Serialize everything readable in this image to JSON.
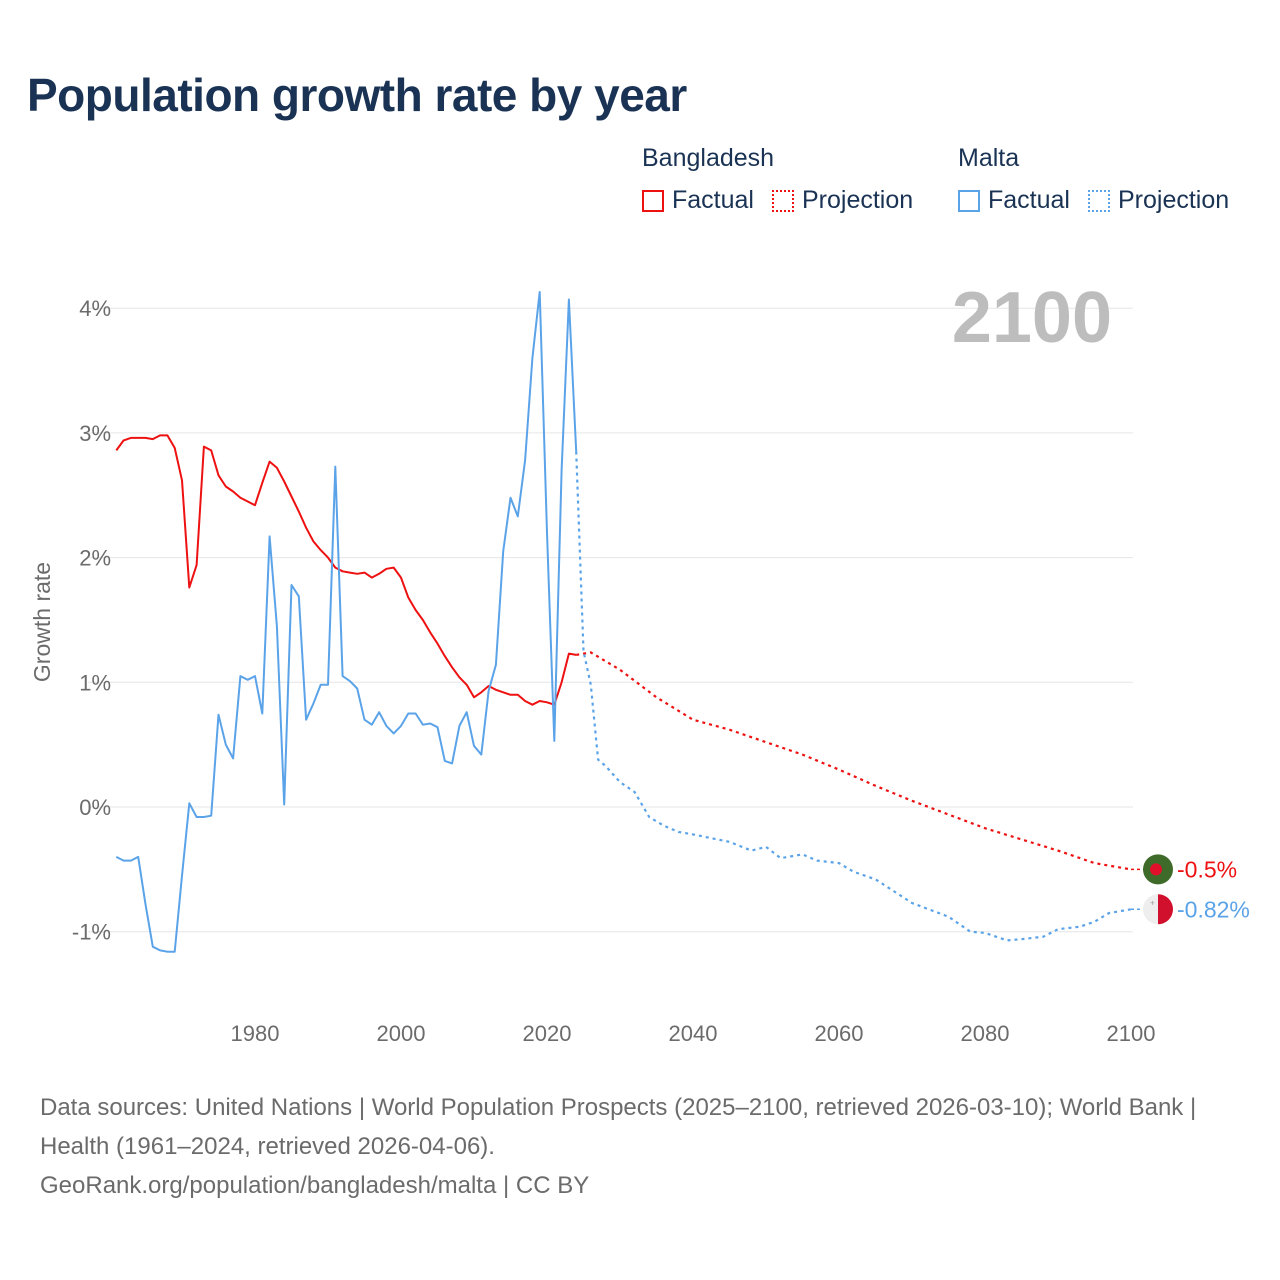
{
  "title": "Population growth rate by year",
  "legend": {
    "groups": [
      {
        "name": "Bangladesh",
        "color": "#ee1111",
        "factual": "Factual",
        "projection": "Projection"
      },
      {
        "name": "Malta",
        "color": "#5ba3e8",
        "factual": "Factual",
        "projection": "Projection"
      }
    ]
  },
  "footer": {
    "sources": "Data sources: United Nations | World Population Prospects (2025–2100, retrieved 2026-03-10); World Bank | Health (1961–2024, retrieved 2026-04-06).",
    "credit": "GeoRank.org/population/bangladesh/malta | CC BY"
  },
  "chart_data": {
    "type": "line",
    "title": "Population growth rate by year",
    "xlabel": "",
    "ylabel": "Growth rate",
    "xlim": [
      1961,
      2100
    ],
    "ylim": [
      -1.6,
      4.2
    ],
    "year_label": "2100",
    "x_ticks": [
      1980,
      2000,
      2020,
      2040,
      2060,
      2080,
      2100
    ],
    "y_ticks": [
      {
        "v": 4,
        "label": "4%"
      },
      {
        "v": 3,
        "label": "3%"
      },
      {
        "v": 2,
        "label": "2%"
      },
      {
        "v": 1,
        "label": "1%"
      },
      {
        "v": 0,
        "label": "0%"
      },
      {
        "v": -1,
        "label": "-1%"
      }
    ],
    "grid": true,
    "series": [
      {
        "name": "Bangladesh",
        "color": "#ee1111",
        "end_label": "-0.5%",
        "factual": {
          "x": [
            1961,
            1962,
            1963,
            1964,
            1965,
            1966,
            1967,
            1968,
            1969,
            1970,
            1971,
            1972,
            1973,
            1974,
            1975,
            1976,
            1977,
            1978,
            1979,
            1980,
            1981,
            1982,
            1983,
            1984,
            1985,
            1986,
            1987,
            1988,
            1989,
            1990,
            1991,
            1992,
            1993,
            1994,
            1995,
            1996,
            1997,
            1998,
            1999,
            2000,
            2001,
            2002,
            2003,
            2004,
            2005,
            2006,
            2007,
            2008,
            2009,
            2010,
            2011,
            2012,
            2013,
            2014,
            2015,
            2016,
            2017,
            2018,
            2019,
            2020,
            2021,
            2022,
            2023,
            2024
          ],
          "y": [
            2.86,
            2.94,
            2.96,
            2.96,
            2.96,
            2.95,
            2.98,
            2.98,
            2.88,
            2.62,
            1.76,
            1.94,
            2.89,
            2.86,
            2.66,
            2.57,
            2.53,
            2.48,
            2.45,
            2.42,
            2.6,
            2.77,
            2.72,
            2.61,
            2.49,
            2.37,
            2.24,
            2.13,
            2.06,
            2.0,
            1.92,
            1.89,
            1.88,
            1.87,
            1.88,
            1.84,
            1.87,
            1.91,
            1.92,
            1.84,
            1.68,
            1.58,
            1.5,
            1.4,
            1.31,
            1.21,
            1.12,
            1.04,
            0.98,
            0.88,
            0.92,
            0.97,
            0.94,
            0.92,
            0.9,
            0.9,
            0.85,
            0.82,
            0.85,
            0.84,
            0.82,
            1.0,
            1.23,
            1.22
          ]
        },
        "projection": {
          "x": [
            2024,
            2026,
            2030,
            2035,
            2040,
            2045,
            2050,
            2055,
            2060,
            2065,
            2070,
            2075,
            2080,
            2085,
            2090,
            2095,
            2100
          ],
          "y": [
            1.22,
            1.24,
            1.1,
            0.88,
            0.7,
            0.62,
            0.52,
            0.42,
            0.3,
            0.17,
            0.05,
            -0.06,
            -0.17,
            -0.26,
            -0.35,
            -0.45,
            -0.5
          ]
        }
      },
      {
        "name": "Malta",
        "color": "#5ba3e8",
        "end_label": "-0.82%",
        "factual": {
          "x": [
            1961,
            1962,
            1963,
            1964,
            1965,
            1966,
            1967,
            1968,
            1969,
            1970,
            1971,
            1972,
            1973,
            1974,
            1975,
            1976,
            1977,
            1978,
            1979,
            1980,
            1981,
            1982,
            1983,
            1984,
            1985,
            1986,
            1987,
            1988,
            1989,
            1990,
            1991,
            1992,
            1993,
            1994,
            1995,
            1996,
            1997,
            1998,
            1999,
            2000,
            2001,
            2002,
            2003,
            2004,
            2005,
            2006,
            2007,
            2008,
            2009,
            2010,
            2011,
            2012,
            2013,
            2014,
            2015,
            2016,
            2017,
            2018,
            2019,
            2020,
            2021,
            2022,
            2023,
            2024
          ],
          "y": [
            -0.4,
            -0.43,
            -0.43,
            -0.4,
            -0.78,
            -1.12,
            -1.15,
            -1.16,
            -1.16,
            -0.55,
            0.03,
            -0.08,
            -0.08,
            -0.07,
            0.74,
            0.5,
            0.39,
            1.05,
            1.02,
            1.05,
            0.75,
            2.17,
            1.45,
            0.02,
            1.78,
            1.69,
            0.7,
            0.83,
            0.98,
            0.98,
            2.73,
            1.05,
            1.01,
            0.95,
            0.7,
            0.66,
            0.76,
            0.65,
            0.59,
            0.65,
            0.75,
            0.75,
            0.66,
            0.67,
            0.64,
            0.37,
            0.35,
            0.65,
            0.76,
            0.49,
            0.42,
            0.93,
            1.14,
            2.05,
            2.48,
            2.33,
            2.78,
            3.6,
            4.13,
            2.2,
            0.53,
            2.7,
            4.07,
            2.85
          ]
        },
        "projection": {
          "x": [
            2024,
            2025,
            2026,
            2027,
            2028,
            2030,
            2032,
            2034,
            2036,
            2038,
            2040,
            2045,
            2048,
            2050,
            2052,
            2055,
            2057,
            2060,
            2062,
            2065,
            2070,
            2075,
            2078,
            2080,
            2083,
            2085,
            2088,
            2090,
            2093,
            2095,
            2097,
            2100
          ],
          "y": [
            2.85,
            1.25,
            0.98,
            0.38,
            0.33,
            0.2,
            0.12,
            -0.08,
            -0.15,
            -0.2,
            -0.22,
            -0.28,
            -0.35,
            -0.32,
            -0.41,
            -0.38,
            -0.43,
            -0.45,
            -0.52,
            -0.58,
            -0.77,
            -0.88,
            -1.0,
            -1.01,
            -1.07,
            -1.06,
            -1.04,
            -0.98,
            -0.96,
            -0.92,
            -0.85,
            -0.82
          ]
        }
      }
    ]
  }
}
